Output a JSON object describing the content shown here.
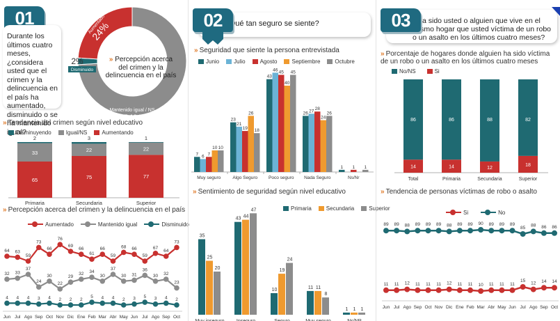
{
  "colors": {
    "teal": "#1f6a72",
    "lightblue": "#6bb3d6",
    "red": "#c8312f",
    "orange": "#ef9a2f",
    "gray": "#8c8c8c",
    "badge": "#1f6a80"
  },
  "panel1": {
    "badge": "01",
    "question": "Durante los últimos cuatro meses, ¿considera usted que el crimen y la delincuencia en el país ha aumentado, disminuido o se ha mantenido igual?",
    "donut_center": "Percepción acerca del crimen y la delincuencia en el país",
    "donut_center_chev": "»"
  },
  "panel2": {
    "badge": "02",
    "question": "¿Qué tan seguro se siente?"
  },
  "panel3": {
    "badge": "03",
    "question": "¿Ha sido usted o alguien que vive en el mismo hogar que usted víctima de un robo o un asalto en los últimos cuatro meses?"
  },
  "chart_data": [
    {
      "id": "donut",
      "type": "pie",
      "title": "Percepción acerca del crimen y la delincuencia en el país",
      "slices": [
        {
          "label": "Aumentado",
          "value": 24,
          "display": "24%",
          "color": "#c8312f"
        },
        {
          "label": "Mantenido igual / NS",
          "value": 74,
          "display": "74%",
          "color": "#8c8c8c"
        },
        {
          "label": "Disminuido",
          "value": 2,
          "display": "2%",
          "color": "#1f6a72"
        }
      ]
    },
    {
      "id": "edu_trend",
      "type": "bar",
      "stacked": true,
      "title": "Tendencia del crimen según nivel educativo",
      "categories": [
        "Primaria",
        "Secundaria",
        "Superior"
      ],
      "series": [
        {
          "name": "Aumentando",
          "values": [
            65,
            75,
            77
          ],
          "color": "#c8312f"
        },
        {
          "name": "Igual/NS",
          "values": [
            33,
            22,
            22
          ],
          "color": "#8c8c8c"
        },
        {
          "name": "Disminuyendo",
          "values": [
            2,
            3,
            1
          ],
          "color": "#1f6a72"
        }
      ],
      "legend_order": [
        "Disminuyendo",
        "Igual/NS",
        "Aumentando"
      ],
      "ylim": [
        0,
        100
      ]
    },
    {
      "id": "perception_line",
      "type": "line",
      "title": "Percepción acerca del crimen y la delincuencia en el país",
      "x": [
        "Jun",
        "Jul",
        "Ago",
        "Sep",
        "Oct",
        "Nov",
        "Dic",
        "Ene",
        "Feb",
        "Mar",
        "Abr",
        "May",
        "Jun",
        "Jul",
        "Ago",
        "Sep",
        "Oct"
      ],
      "series": [
        {
          "name": "Aumentado",
          "values": [
            64,
            63,
            59,
            73,
            66,
            76,
            69,
            66,
            61,
            66,
            59,
            68,
            66,
            59,
            67,
            64,
            73
          ],
          "color": "#c8312f"
        },
        {
          "name": "Mantenido igual",
          "values": [
            32,
            33,
            37,
            24,
            30,
            22,
            29,
            32,
            34,
            30,
            37,
            30,
            31,
            36,
            30,
            32,
            23
          ],
          "color": "#8c8c8c"
        },
        {
          "name": "Disminuido",
          "values": [
            4,
            4,
            4,
            3,
            4,
            2,
            2,
            2,
            5,
            4,
            4,
            2,
            3,
            5,
            3,
            4,
            2
          ],
          "color": "#1f6a72"
        }
      ],
      "ylim": [
        0,
        80
      ]
    },
    {
      "id": "security_feeling",
      "type": "bar",
      "title": "Seguridad que siente la persona entrevistada",
      "categories": [
        "Muy seguro",
        "Algo Seguro",
        "Poco seguro",
        "Nada Seguro",
        "Ns/Nr"
      ],
      "series": [
        {
          "name": "Junio",
          "values": [
            7,
            23,
            43,
            26,
            1
          ],
          "color": "#1f6a72"
        },
        {
          "name": "Julio",
          "values": [
            6,
            21,
            46,
            27,
            null
          ],
          "color": "#6bb3d6"
        },
        {
          "name": "Agosto",
          "values": [
            7,
            19,
            45,
            28,
            1
          ],
          "color": "#c8312f"
        },
        {
          "name": "Septiembre",
          "values": [
            10,
            26,
            40,
            24,
            null
          ],
          "color": "#ef9a2f"
        },
        {
          "name": "Octubre",
          "values": [
            10,
            18,
            45,
            26,
            1
          ],
          "color": "#8c8c8c"
        }
      ],
      "ylim": [
        0,
        50
      ]
    },
    {
      "id": "security_edu",
      "type": "bar",
      "title": "Sentimiento de seguridad según nivel educativo",
      "categories": [
        "Muy inseguro",
        "Inseguro",
        "Seguro",
        "Muy seguro",
        "Ns/NR"
      ],
      "series": [
        {
          "name": "Primaria",
          "values": [
            35,
            43,
            10,
            11,
            1
          ],
          "color": "#1f6a72"
        },
        {
          "name": "Secundaria",
          "values": [
            25,
            44,
            19,
            11,
            1
          ],
          "color": "#ef9a2f"
        },
        {
          "name": "Superior",
          "values": [
            20,
            47,
            24,
            8,
            1
          ],
          "color": "#8c8c8c"
        }
      ],
      "ylim": [
        0,
        50
      ]
    },
    {
      "id": "victim_households",
      "type": "bar",
      "stacked": true,
      "title": "Porcentaje de hogares donde alguien ha sido víctima de un robo o un asalto en los últimos cuatro meses",
      "categories": [
        "Total",
        "Primaria",
        "Secundaria",
        "Superior"
      ],
      "series": [
        {
          "name": "Si",
          "values": [
            14,
            14,
            12,
            18
          ],
          "color": "#c8312f"
        },
        {
          "name": "No/NS",
          "values": [
            86,
            86,
            88,
            82
          ],
          "color": "#1f6a72"
        }
      ],
      "legend_order": [
        "No/NS",
        "Si"
      ],
      "ylim": [
        0,
        100
      ]
    },
    {
      "id": "victim_trend",
      "type": "line",
      "title": "Tendencia de personas víctimas de robo o asalto",
      "x": [
        "Jun",
        "Jul",
        "Ago",
        "Sep",
        "Oct",
        "Nov",
        "Dic",
        "Ene",
        "Feb",
        "Mar",
        "Abr",
        "May",
        "Jun",
        "Jul",
        "Ago",
        "Sep",
        "Oct"
      ],
      "series": [
        {
          "name": "Si",
          "values": [
            11,
            11,
            12,
            11,
            11,
            11,
            12,
            11,
            11,
            10,
            11,
            11,
            11,
            15,
            12,
            14,
            14
          ],
          "color": "#c8312f"
        },
        {
          "name": "No",
          "values": [
            89,
            89,
            88,
            89,
            89,
            89,
            88,
            89,
            89,
            90,
            89,
            89,
            89,
            85,
            88,
            86,
            86
          ],
          "color": "#1f6a72"
        }
      ]
    }
  ]
}
